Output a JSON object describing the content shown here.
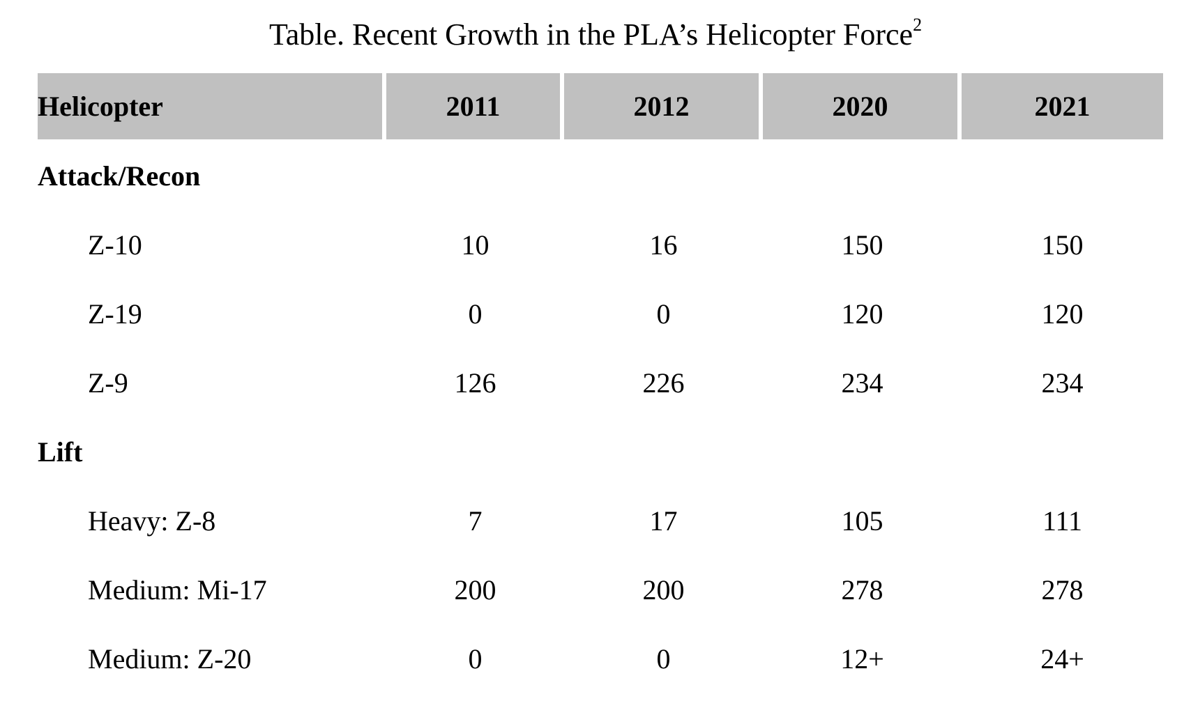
{
  "title": {
    "text": "Table. Recent Growth in the PLA’s Helicopter Force",
    "footnote": "2"
  },
  "table": {
    "headers": [
      "Helicopter",
      "2011",
      "2012",
      "2020",
      "2021"
    ],
    "groups": [
      {
        "label": "Attack/Recon",
        "rows": [
          {
            "name": "Z-10",
            "values": [
              "10",
              "16",
              "150",
              "150"
            ]
          },
          {
            "name": "Z-19",
            "values": [
              "0",
              "0",
              "120",
              "120"
            ]
          },
          {
            "name": "Z-9",
            "values": [
              "126",
              "226",
              "234",
              "234"
            ]
          }
        ]
      },
      {
        "label": "Lift",
        "rows": [
          {
            "name": "Heavy: Z-8",
            "values": [
              "7",
              "17",
              "105",
              "111"
            ]
          },
          {
            "name": "Medium: Mi-17",
            "values": [
              "200",
              "200",
              "278",
              "278"
            ]
          },
          {
            "name": "Medium: Z-20",
            "values": [
              "0",
              "0",
              "12+",
              "24+"
            ]
          }
        ]
      }
    ]
  }
}
